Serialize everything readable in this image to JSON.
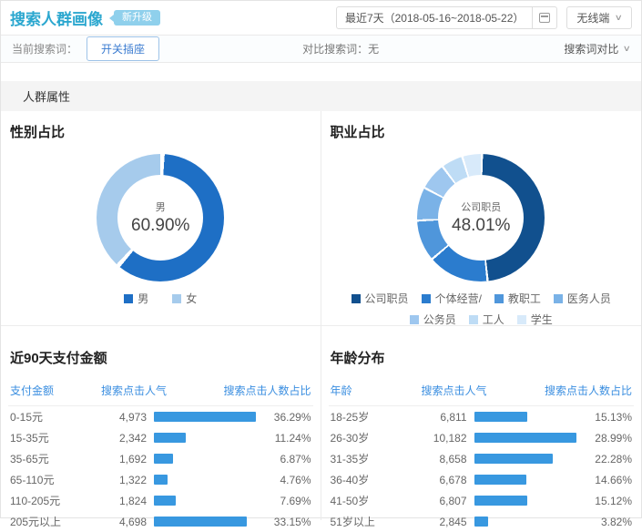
{
  "header": {
    "title": "搜索人群画像",
    "badge": "新升级",
    "date_range": "最近7天（2018-05-16~2018-05-22）",
    "device": "无线端",
    "caret": "∨"
  },
  "toolbar": {
    "current_label": "当前搜索词：",
    "current_keyword": "开关插座",
    "compare_text": "对比搜索词：无",
    "compare_action": "搜索词对比",
    "caret": "∨"
  },
  "section_title": "人群属性",
  "colors": {
    "accent_title": "#2ba7cf",
    "badge_bg": "#8fd0ec",
    "table_header_blue": "#3a8ee0",
    "bar_blue": "#3898e0"
  },
  "chart_data": [
    {
      "type": "pie",
      "title": "性别占比",
      "center_label": "男",
      "center_value": "60.90%",
      "gap_deg": 4,
      "series": [
        {
          "name": "男",
          "value": 60.9,
          "color": "#1e6fc5"
        },
        {
          "name": "女",
          "value": 39.1,
          "color": "#a6cbec"
        }
      ]
    },
    {
      "type": "pie",
      "title": "职业占比",
      "center_label": "公司职员",
      "center_value": "48.01%",
      "gap_deg": 2,
      "note": "only 公司职员 48.01% labeled; other shares estimated from arc sizes",
      "series": [
        {
          "name": "公司职员",
          "value": 48.01,
          "color": "#11508e"
        },
        {
          "name": "个体经营/",
          "value": 15.5,
          "color": "#2b7cce"
        },
        {
          "name": "教职工",
          "value": 10.5,
          "color": "#4f96db"
        },
        {
          "name": "医务人员",
          "value": 8.5,
          "color": "#7ab2e7"
        },
        {
          "name": "公务员",
          "value": 7.0,
          "color": "#9ec7ef"
        },
        {
          "name": "工人",
          "value": 5.5,
          "color": "#bedcf5"
        },
        {
          "name": "学生",
          "value": 4.99,
          "color": "#d8eafa"
        }
      ]
    },
    {
      "type": "bar",
      "title": "近90天支付金额",
      "columns": [
        "支付金额",
        "搜索点击人气",
        "搜索点击人数占比"
      ],
      "rows": [
        {
          "label": "0-15元",
          "value": "4,973",
          "pct": "36.29%"
        },
        {
          "label": "15-35元",
          "value": "2,342",
          "pct": "11.24%"
        },
        {
          "label": "35-65元",
          "value": "1,692",
          "pct": "6.87%"
        },
        {
          "label": "65-110元",
          "value": "1,322",
          "pct": "4.76%"
        },
        {
          "label": "110-205元",
          "value": "1,824",
          "pct": "7.69%"
        },
        {
          "label": "205元以上",
          "value": "4,698",
          "pct": "33.15%"
        }
      ]
    },
    {
      "type": "bar",
      "title": "年龄分布",
      "columns": [
        "年龄",
        "搜索点击人气",
        "搜索点击人数占比"
      ],
      "rows": [
        {
          "label": "18-25岁",
          "value": "6,811",
          "pct": "15.13%"
        },
        {
          "label": "26-30岁",
          "value": "10,182",
          "pct": "28.99%"
        },
        {
          "label": "31-35岁",
          "value": "8,658",
          "pct": "22.28%"
        },
        {
          "label": "36-40岁",
          "value": "6,678",
          "pct": "14.66%"
        },
        {
          "label": "41-50岁",
          "value": "6,807",
          "pct": "15.12%"
        },
        {
          "label": "51岁以上",
          "value": "2,845",
          "pct": "3.82%"
        }
      ]
    }
  ]
}
